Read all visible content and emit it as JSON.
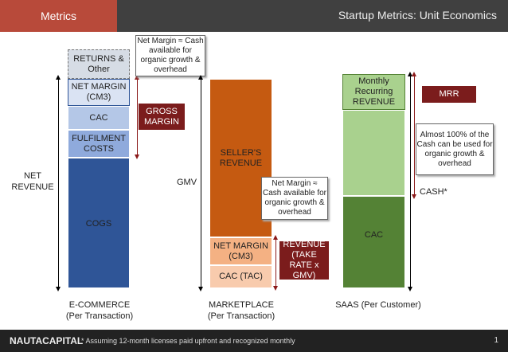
{
  "header": {
    "section": "Metrics",
    "title": "Startup Metrics: Unit Economics"
  },
  "ecommerce": {
    "returns": "RETURNS & Other",
    "net_margin": "NET MARGIN (CM3)",
    "cac": "CAC",
    "fulfilment": "FULFILMENT COSTS",
    "cogs": "COGS",
    "net_revenue": "NET REVENUE",
    "gross_margin": "GROSS MARGIN",
    "callout": "Net Margin ≈ Cash available for organic growth & overhead",
    "label1": "E-COMMERCE",
    "label2": "(Per Transaction)"
  },
  "marketplace": {
    "gmv": "GMV",
    "sellers_revenue": "SELLER'S REVENUE",
    "net_margin": "NET MARGIN (CM3)",
    "cac": "CAC (TAC)",
    "revenue": "REVENUE (TAKE RATE x GMV)",
    "callout": "Net Margin ≈ Cash available for organic growth & overhead",
    "label1": "MARKETPLACE",
    "label2": "(Per Transaction)"
  },
  "saas": {
    "mrr_block": "Monthly Recurring REVENUE",
    "cac": "CAC",
    "mrr": "MRR",
    "callout": "Almost 100% of the Cash can be used for organic growth & overhead",
    "cash": "CASH*",
    "label": "SAAS (Per Customer)"
  },
  "footer": {
    "logo": "NAUTACAPITAL",
    "note": "* Assuming 12-month licenses paid upfront and recognized monthly",
    "page": "1"
  }
}
